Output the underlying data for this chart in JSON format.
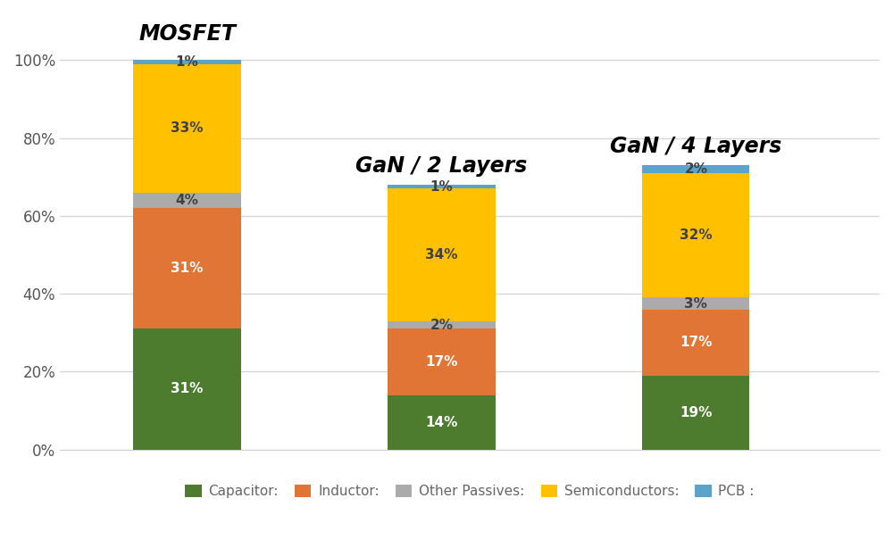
{
  "categories": [
    "MOSFET",
    "GaN / 2 Layers",
    "GaN / 4 Layers"
  ],
  "series": {
    "Capacitor:": [
      31,
      14,
      19
    ],
    "Inductor:": [
      31,
      17,
      17
    ],
    "Other Passives:": [
      4,
      2,
      3
    ],
    "Semiconductors:": [
      33,
      34,
      32
    ],
    "PCB :": [
      1,
      1,
      2
    ]
  },
  "colors": {
    "Capacitor:": "#4d7c2e",
    "Inductor:": "#e07535",
    "Other Passives:": "#ababab",
    "Semiconductors:": "#ffc000",
    "PCB :": "#5ba3c9"
  },
  "bar_labels": {
    "Capacitor:": [
      "31%",
      "14%",
      "19%"
    ],
    "Inductor:": [
      "31%",
      "17%",
      "17%"
    ],
    "Other Passives:": [
      "4%",
      "2%",
      "3%"
    ],
    "Semiconductors:": [
      "33%",
      "34%",
      "32%"
    ],
    "PCB :": [
      "1%",
      "1%",
      "2%"
    ]
  },
  "label_colors": {
    "Capacitor:": "#ffffff",
    "Inductor:": "#ffffff",
    "Other Passives:": "#404040",
    "Semiconductors:": "#404040",
    "PCB :": "#404040"
  },
  "group_title_positions": [
    {
      "label": "MOSFET",
      "bar_idx": 0,
      "y": 104,
      "ha": "center"
    },
    {
      "label": "GaN / 2 Layers",
      "bar_idx": 1,
      "y": 70,
      "ha": "center"
    },
    {
      "label": "GaN / 4 Layers",
      "bar_idx": 2,
      "y": 75,
      "ha": "center"
    }
  ],
  "bar_positions": [
    0.3,
    1.2,
    2.1
  ],
  "bar_width": 0.38,
  "xlim": [
    -0.15,
    2.75
  ],
  "ylim": [
    0,
    112
  ],
  "yticks": [
    0,
    20,
    40,
    60,
    80,
    100
  ],
  "ytick_labels": [
    "0%",
    "20%",
    "40%",
    "60%",
    "80%",
    "100%"
  ],
  "background_color": "#ffffff",
  "grid_color": "#d4d4d4",
  "label_fontsize": 11,
  "title_fontsize": 17,
  "legend_fontsize": 11,
  "legend_text_color": "#666666"
}
